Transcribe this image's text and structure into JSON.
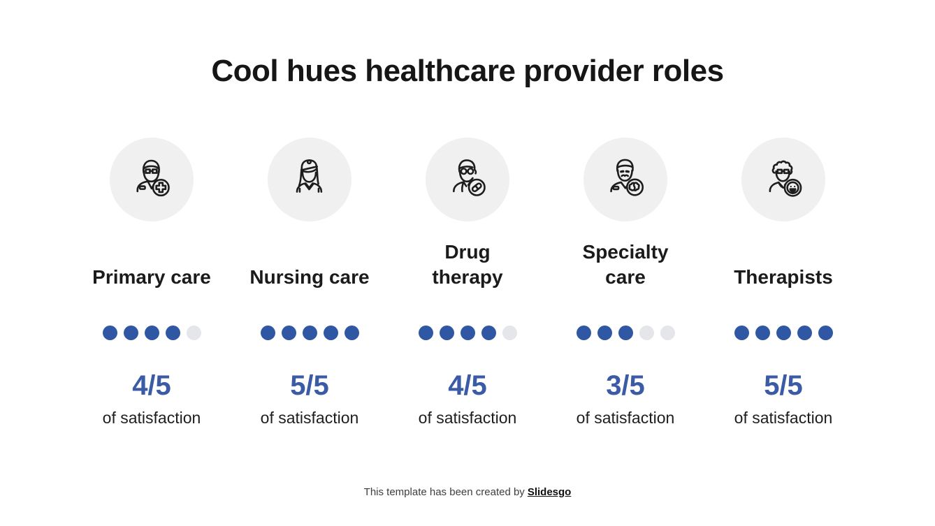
{
  "slide": {
    "title": "Cool hues healthcare provider roles",
    "rating_scale": 5,
    "colors": {
      "dot_filled": "#2F57A4",
      "score_text": "#3B5BA7",
      "dot_empty": "#E4E6E9",
      "icon_circle_bg": "#F0F0F0",
      "title_text": "#161616",
      "footer_text": "#3D3D3D"
    },
    "columns": [
      {
        "label": "Primary care",
        "icon": "doctor-cross-icon",
        "rating": 4,
        "score": "4/5",
        "caption": "of satisfaction"
      },
      {
        "label": "Nursing care",
        "icon": "nurse-icon",
        "rating": 5,
        "score": "5/5",
        "caption": "of satisfaction"
      },
      {
        "label": "Drug\ntherapy",
        "icon": "pharmacist-pill-icon",
        "rating": 4,
        "score": "4/5",
        "caption": "of satisfaction"
      },
      {
        "label": "Specialty\ncare",
        "icon": "specialist-brain-icon",
        "rating": 3,
        "score": "3/5",
        "caption": "of satisfaction"
      },
      {
        "label": "Therapists",
        "icon": "therapist-smiley-icon",
        "rating": 5,
        "score": "5/5",
        "caption": "of satisfaction"
      }
    ],
    "footer": {
      "prefix": "This template has been created by",
      "brand": "Slidesgo"
    }
  }
}
